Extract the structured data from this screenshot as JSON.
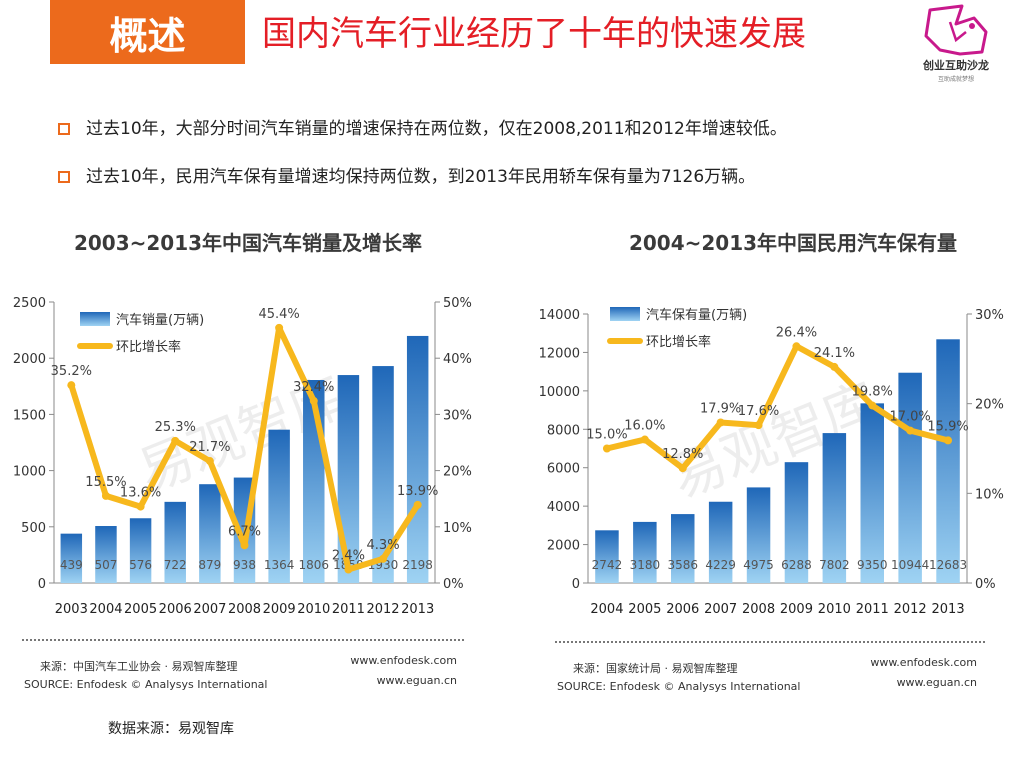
{
  "header": {
    "tag": "概述",
    "title": "国内汽车行业经历了十年的快速发展",
    "logo_text": "创业互助沙龙",
    "logo_subtext": "互助成就梦想"
  },
  "bullets": [
    "过去10年，大部分时间汽车销量的增速保持在两位数，仅在2008,2011和2012年增速较低。",
    "过去10年，民用汽车保有量增速均保持两位数，到2013年民用轿车保有量为7126万辆。"
  ],
  "chart_data": [
    {
      "type": "bar",
      "title": "2003~2013年中国汽车销量及增长率",
      "categories": [
        "2003",
        "2004",
        "2005",
        "2006",
        "2007",
        "2008",
        "2009",
        "2010",
        "2011",
        "2012",
        "2013"
      ],
      "series": [
        {
          "name": "汽车销量(万辆)",
          "type": "bar",
          "axis": "left",
          "values": [
            439,
            507,
            576,
            722,
            879,
            938,
            1364,
            1806,
            1850,
            1930,
            2198
          ]
        },
        {
          "name": "环比增长率",
          "type": "line",
          "axis": "right",
          "values": [
            35.2,
            15.5,
            13.6,
            25.3,
            21.7,
            6.7,
            45.4,
            32.4,
            2.4,
            4.3,
            13.9
          ]
        }
      ],
      "ylim": [
        0,
        2500
      ],
      "y_ticks": [
        "0",
        "500",
        "1000",
        "1500",
        "2000",
        "2500"
      ],
      "y2lim": [
        0,
        50
      ],
      "y2_ticks": [
        "0%",
        "10%",
        "20%",
        "30%",
        "40%",
        "50%"
      ],
      "legend": "top-left",
      "watermark": "易观智库",
      "source_cn": "来源：中国汽车工业协会 · 易观智库整理",
      "source_en": "SOURCE: Enfodesk © Analysys International",
      "site1": "www.enfodesk.com",
      "site2": "www.eguan.cn"
    },
    {
      "type": "bar",
      "title": "2004~2013年中国民用汽车保有量",
      "categories": [
        "2004",
        "2005",
        "2006",
        "2007",
        "2008",
        "2009",
        "2010",
        "2011",
        "2012",
        "2013"
      ],
      "series": [
        {
          "name": "汽车保有量(万辆)",
          "type": "bar",
          "axis": "left",
          "values": [
            2742,
            3180,
            3586,
            4229,
            4975,
            6288,
            7802,
            9350,
            10944,
            12683
          ]
        },
        {
          "name": "环比增长率",
          "type": "line",
          "axis": "right",
          "values": [
            15.0,
            16.0,
            12.8,
            17.9,
            17.6,
            26.4,
            24.1,
            19.8,
            17.0,
            15.9
          ]
        }
      ],
      "ylim": [
        0,
        14000
      ],
      "y_ticks": [
        "0",
        "2000",
        "4000",
        "6000",
        "8000",
        "10000",
        "12000",
        "14000"
      ],
      "y2lim": [
        0,
        30
      ],
      "y2_ticks": [
        "0%",
        "10%",
        "20%",
        "30%"
      ],
      "legend": "top-left",
      "watermark": "易观智库",
      "source_cn": "来源：国家统计局 · 易观智库整理",
      "source_en": "SOURCE: Enfodesk © Analysys International",
      "site1": "www.enfodesk.com",
      "site2": "www.eguan.cn"
    }
  ],
  "colors": {
    "accent": "#ec6a1c",
    "title_red": "#e41e26",
    "bar_dark": "#1f67b8",
    "bar_light": "#9fd3f3",
    "line": "#f7b81d",
    "logo_magenta": "#c8198c"
  },
  "footer": {
    "data_source": "数据来源：易观智库"
  }
}
